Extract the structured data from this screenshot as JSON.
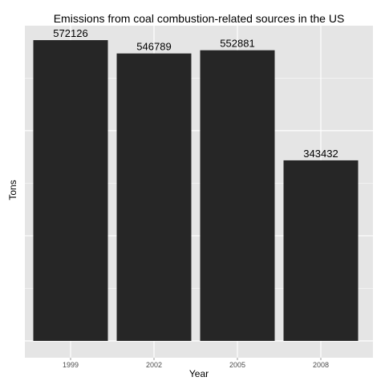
{
  "chart_data": {
    "type": "bar",
    "title": "Emissions from coal combustion-related sources in the US",
    "xlabel": "Year",
    "ylabel": "Tons",
    "categories": [
      "1999",
      "2002",
      "2005",
      "2008"
    ],
    "values": [
      572126,
      546789,
      552881,
      343432
    ],
    "data_labels": [
      "572126",
      "546789",
      "552881",
      "343432"
    ],
    "ylim": [
      0,
      600000
    ],
    "y_tick_labels_shown": false,
    "grid": true,
    "legend": "none",
    "colors": {
      "panel_background": "#e5e5e5",
      "gridline": "#ffffff",
      "bar_fill": "#262626"
    }
  }
}
